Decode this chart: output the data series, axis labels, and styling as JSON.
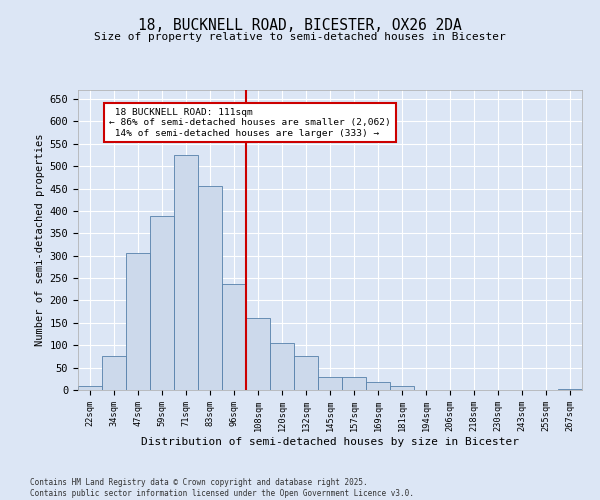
{
  "title": "18, BUCKNELL ROAD, BICESTER, OX26 2DA",
  "subtitle": "Size of property relative to semi-detached houses in Bicester",
  "xlabel": "Distribution of semi-detached houses by size in Bicester",
  "ylabel": "Number of semi-detached properties",
  "categories": [
    "22sqm",
    "34sqm",
    "47sqm",
    "59sqm",
    "71sqm",
    "83sqm",
    "96sqm",
    "108sqm",
    "120sqm",
    "132sqm",
    "145sqm",
    "157sqm",
    "169sqm",
    "181sqm",
    "194sqm",
    "206sqm",
    "218sqm",
    "230sqm",
    "243sqm",
    "255sqm",
    "267sqm"
  ],
  "values": [
    8,
    76,
    307,
    388,
    525,
    455,
    236,
    160,
    106,
    76,
    30,
    28,
    18,
    8,
    0,
    0,
    0,
    0,
    0,
    0,
    3
  ],
  "bar_color": "#ccd9eb",
  "bar_edge_color": "#5580aa",
  "background_color": "#dce6f5",
  "grid_color": "#ffffff",
  "property_line_index": 7,
  "property_value": "111sqm",
  "property_name": "18 BUCKNELL ROAD",
  "pct_smaller": 86,
  "count_smaller": 2062,
  "pct_larger": 14,
  "count_larger": 333,
  "annotation_box_color": "#ffffff",
  "annotation_border_color": "#cc0000",
  "line_color": "#cc0000",
  "ylim": [
    0,
    670
  ],
  "yticks": [
    0,
    50,
    100,
    150,
    200,
    250,
    300,
    350,
    400,
    450,
    500,
    550,
    600,
    650
  ],
  "footer_line1": "Contains HM Land Registry data © Crown copyright and database right 2025.",
  "footer_line2": "Contains public sector information licensed under the Open Government Licence v3.0."
}
